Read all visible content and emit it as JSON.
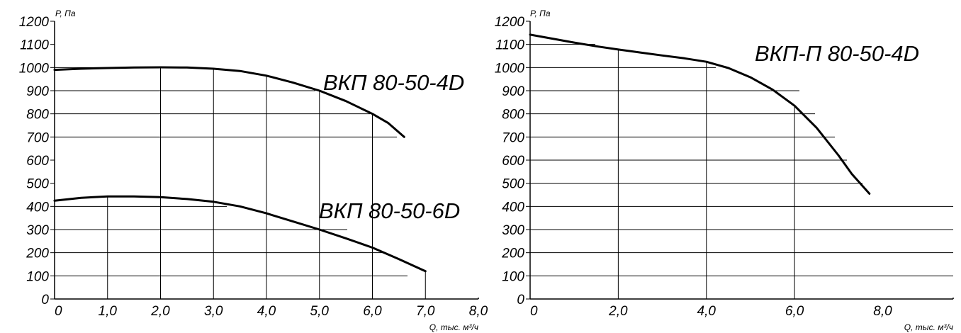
{
  "chart_data": [
    {
      "type": "line",
      "title": "",
      "xlabel": "Q, тыс. м³/ч",
      "ylabel": "P, Па",
      "xlim": [
        0,
        8
      ],
      "ylim": [
        0,
        1200
      ],
      "x_ticks": [
        "0",
        "1,0",
        "2,0",
        "3,0",
        "4,0",
        "5,0",
        "6,0",
        "7,0",
        "8,0"
      ],
      "y_ticks": [
        "0",
        "100",
        "200",
        "300",
        "400",
        "500",
        "600",
        "700",
        "800",
        "900",
        "1000",
        "1100",
        "1200"
      ],
      "grid": "partial (only below curves)",
      "series": [
        {
          "name": "ВКП 80-50-4D",
          "x": [
            0,
            0.5,
            1.0,
            1.5,
            2.0,
            2.5,
            3.0,
            3.5,
            4.0,
            4.5,
            5.0,
            5.5,
            6.0,
            6.3,
            6.6
          ],
          "y": [
            990,
            995,
            998,
            1000,
            1001,
            1000,
            995,
            985,
            965,
            935,
            900,
            855,
            800,
            760,
            700
          ]
        },
        {
          "name": "ВКП 80-50-6D",
          "x": [
            0,
            0.5,
            1.0,
            1.5,
            2.0,
            2.5,
            3.0,
            3.5,
            4.0,
            4.5,
            5.0,
            5.5,
            6.0,
            6.5,
            7.0
          ],
          "y": [
            425,
            437,
            443,
            443,
            440,
            432,
            420,
            400,
            370,
            335,
            300,
            262,
            222,
            172,
            120
          ]
        }
      ]
    },
    {
      "type": "line",
      "title": "",
      "xlabel": "Q, тыс. м³/ч",
      "ylabel": "P, Па",
      "xlim": [
        0,
        9.6
      ],
      "ylim": [
        0,
        1200
      ],
      "x_ticks": [
        "0",
        "2,0",
        "4,0",
        "6,0",
        "8,0"
      ],
      "x_tick_values": [
        0,
        2,
        4,
        6,
        8
      ],
      "y_ticks": [
        "0",
        "100",
        "200",
        "300",
        "400",
        "500",
        "600",
        "700",
        "800",
        "900",
        "1000",
        "1100",
        "1200"
      ],
      "grid": "partial (only below curve)",
      "series": [
        {
          "name": "ВКП-П 80-50-4D",
          "x": [
            0,
            0.5,
            1.0,
            1.5,
            2.0,
            2.5,
            3.0,
            3.5,
            4.0,
            4.5,
            5.0,
            5.5,
            6.0,
            6.5,
            7.0,
            7.3,
            7.7
          ],
          "y": [
            1142,
            1125,
            1108,
            1092,
            1078,
            1065,
            1052,
            1040,
            1025,
            998,
            958,
            905,
            835,
            740,
            620,
            540,
            455
          ]
        }
      ]
    }
  ]
}
